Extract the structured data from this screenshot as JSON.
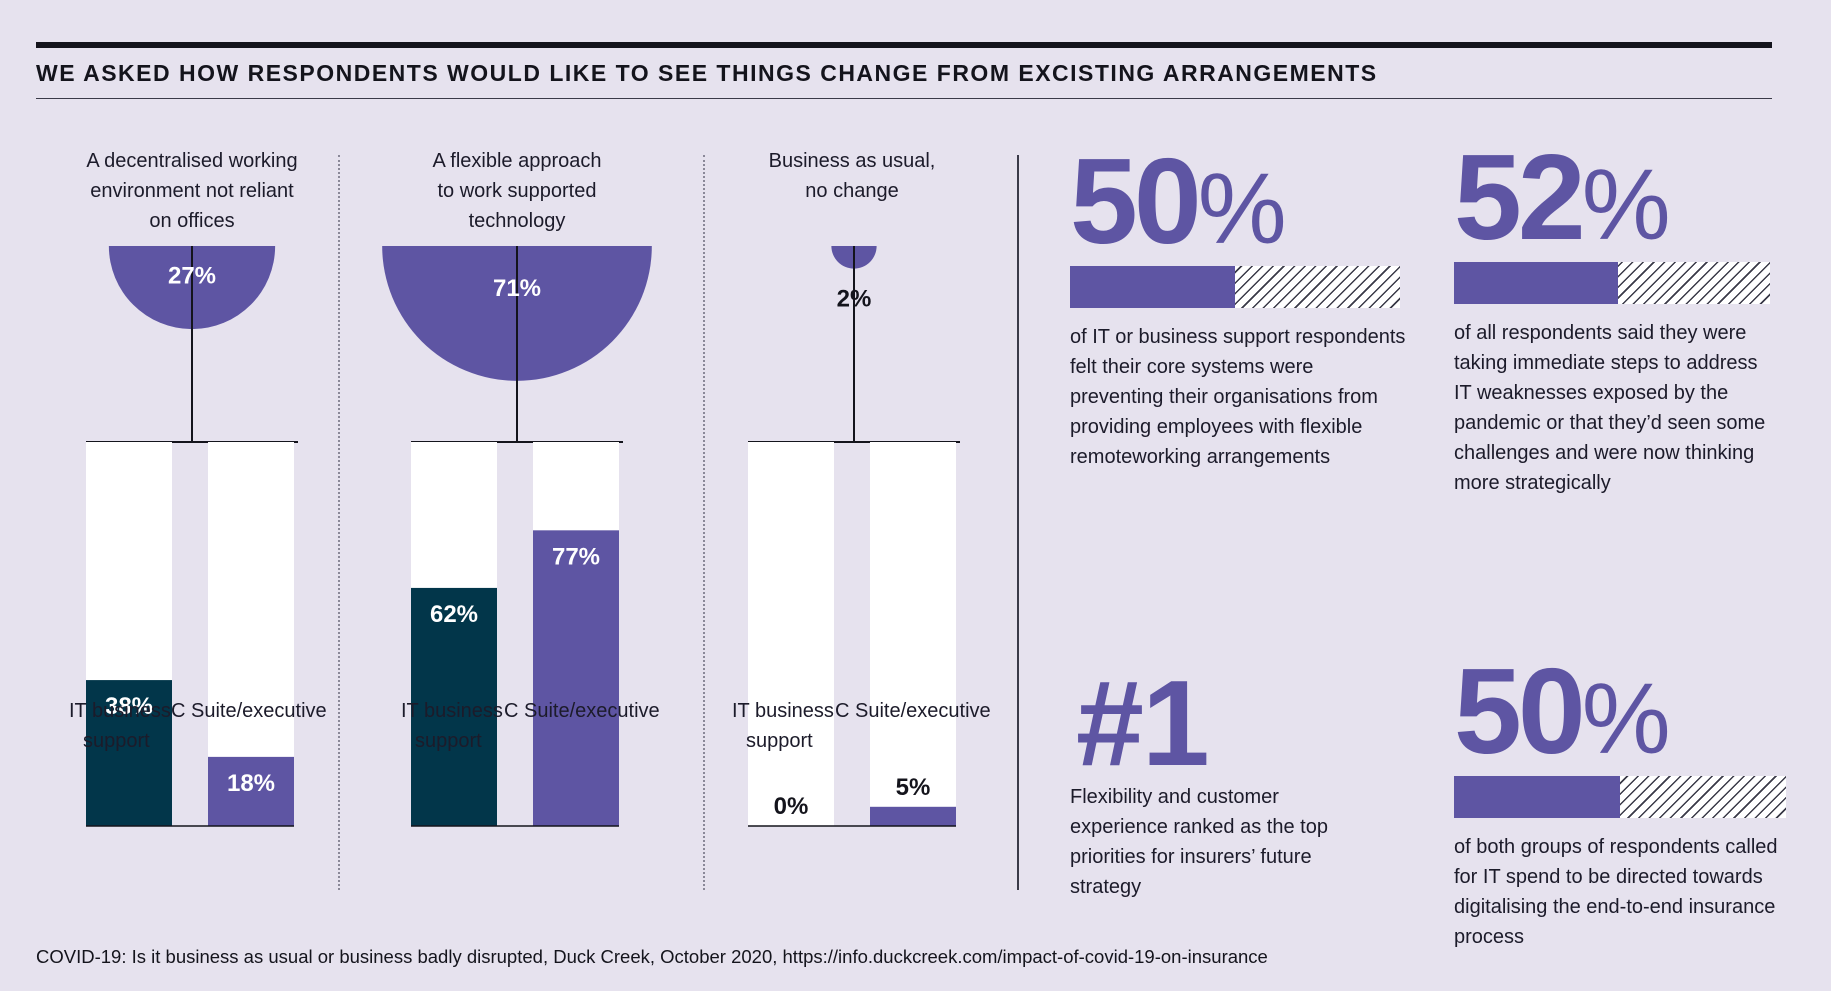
{
  "header": {
    "title": "WE ASKED HOW RESPONDENTS WOULD LIKE TO SEE THINGS CHANGE FROM EXCISTING ARRANGEMENTS"
  },
  "colors": {
    "purple": "#5e55a3",
    "navy": "#02364a",
    "background": "#e6e2ee",
    "bar_bg": "#ffffff"
  },
  "chart_data": {
    "type": "bar",
    "title": "WE ASKED HOW RESPONDENTS WOULD LIKE TO SEE THINGS CHANGE FROM EXCISTING ARRANGEMENTS",
    "ylim": [
      0,
      100
    ],
    "series_names": [
      "IT business support",
      "C Suite/executive"
    ],
    "categories": [
      {
        "label_lines": [
          "A decentralised working",
          "environment not reliant",
          "on offices"
        ],
        "overall": 27,
        "overall_label": "27%",
        "groups": [
          {
            "name_lines": [
              "IT business",
              "support"
            ],
            "value": 38,
            "label": "38%"
          },
          {
            "name_lines": [
              "C Suite/executive"
            ],
            "value": 18,
            "label": "18%"
          }
        ]
      },
      {
        "label_lines": [
          "A flexible approach",
          "to work supported",
          "technology"
        ],
        "overall": 71,
        "overall_label": "71%",
        "groups": [
          {
            "name_lines": [
              "IT business",
              "support"
            ],
            "value": 62,
            "label": "62%"
          },
          {
            "name_lines": [
              "C Suite/executive"
            ],
            "value": 77,
            "label": "77%"
          }
        ]
      },
      {
        "label_lines": [
          "Business as usual,",
          "no change"
        ],
        "overall": 2,
        "overall_label": "2%",
        "groups": [
          {
            "name_lines": [
              "IT business",
              "support"
            ],
            "value": 0,
            "label": "0%"
          },
          {
            "name_lines": [
              "C Suite/executive"
            ],
            "value": 5,
            "label": "5%"
          }
        ]
      }
    ]
  },
  "stats": [
    {
      "number": "50",
      "percent_sign": "%",
      "value": 50,
      "text": "of IT or business support respondents felt their core systems were preventing their organisations from providing employees with flexible remoteworking arrangements"
    },
    {
      "number": "52",
      "percent_sign": "%",
      "value": 52,
      "text": "of all respondents said they were taking immediate steps to address IT weaknesses exposed by the pandemic or that they’d seen some challenges and were now thinking more strategically"
    },
    {
      "number": "#1",
      "percent_sign": "",
      "text": "Flexibility and customer experience ranked as the top priorities for insurers’ future strategy"
    },
    {
      "number": "50",
      "percent_sign": "%",
      "value": 50,
      "text": "of both groups of respondents called for IT spend to be directed towards digitalising the end-to-end insurance process"
    }
  ],
  "footer": {
    "source": "COVID-19: Is it business as usual or business badly disrupted, Duck Creek, October 2020, https://info.duckcreek.com/impact-of-covid-19-on-insurance"
  }
}
